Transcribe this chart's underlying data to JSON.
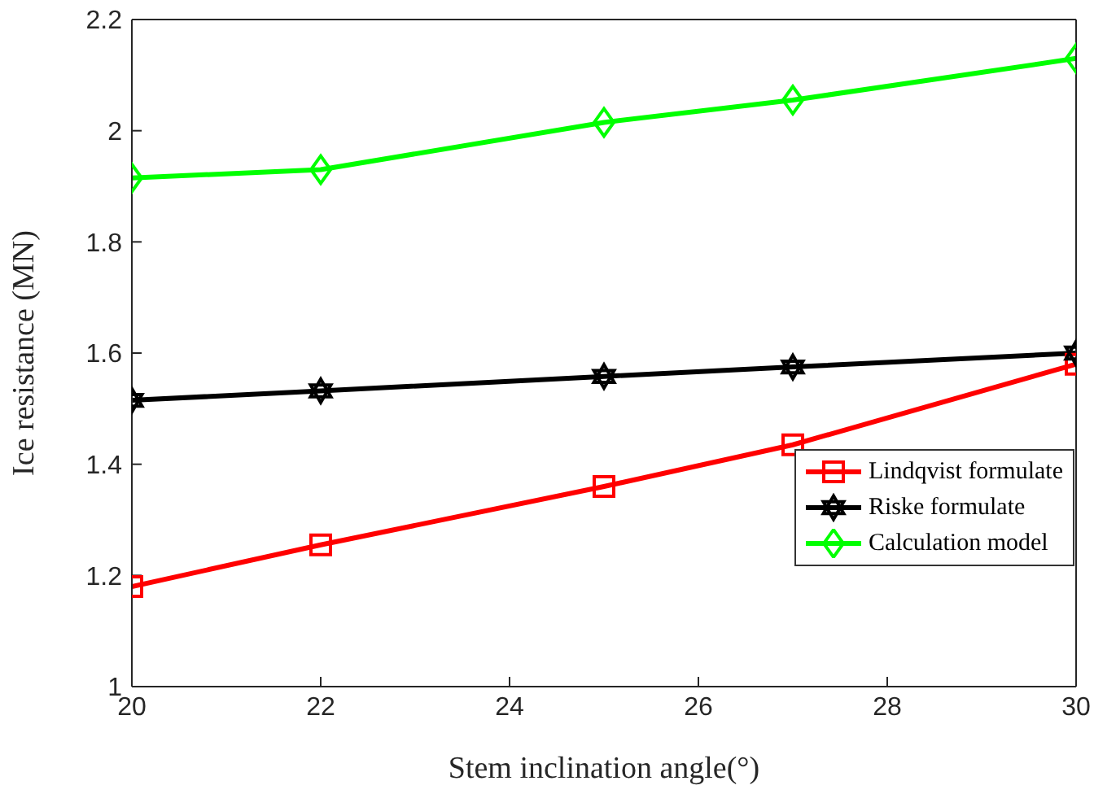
{
  "chart_data": {
    "type": "line",
    "xlabel": "Stem inclination angle(°)",
    "ylabel": "Ice resistance (MN)",
    "x": [
      20,
      22,
      25,
      27,
      30
    ],
    "series": [
      {
        "name": "Lindqvist formulate",
        "color": "#ff0000",
        "marker": "square",
        "values": [
          1.18,
          1.255,
          1.36,
          1.435,
          1.58
        ]
      },
      {
        "name": "Riske formulate",
        "color": "#000000",
        "marker": "star",
        "values": [
          1.515,
          1.532,
          1.558,
          1.575,
          1.6
        ]
      },
      {
        "name": "Calculation model",
        "color": "#00ff00",
        "marker": "diamond",
        "values": [
          1.915,
          1.93,
          2.015,
          2.055,
          2.13
        ]
      }
    ],
    "xlim": [
      20,
      30
    ],
    "xticks": [
      20,
      22,
      24,
      26,
      28,
      30
    ],
    "ylim": [
      1,
      2.2
    ],
    "yticks": [
      1,
      1.2,
      1.4,
      1.6,
      1.8,
      2,
      2.2
    ],
    "grid": false,
    "legend": "bottom right",
    "line_style": "solid"
  }
}
